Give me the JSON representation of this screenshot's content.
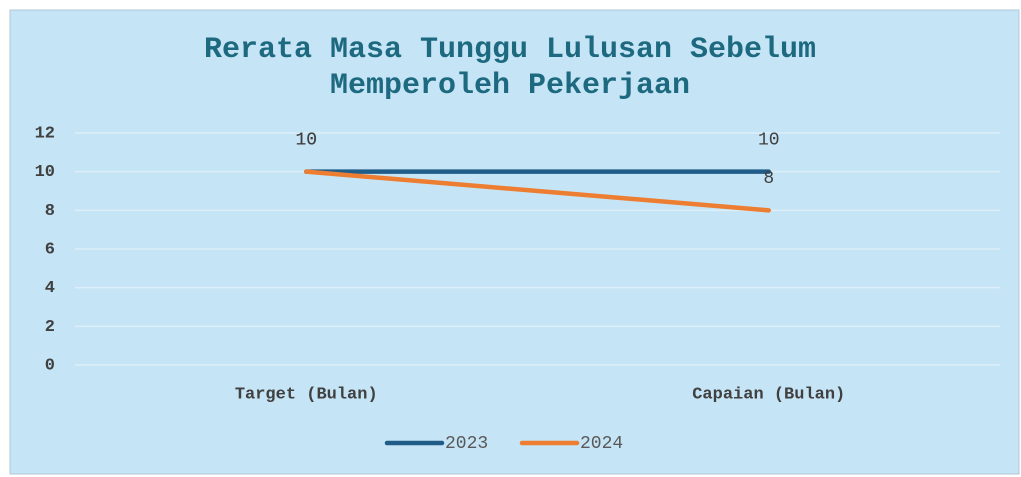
{
  "chart_data": {
    "type": "line",
    "title": "Rerata Masa Tunggu Lulusan Sebelum Memperoleh Pekerjaan",
    "categories": [
      "Target (Bulan)",
      "Capaian (Bulan)"
    ],
    "series": [
      {
        "name": "2023",
        "color": "#1f5c87",
        "values": [
          10,
          10
        ]
      },
      {
        "name": "2024",
        "color": "#ed7d31",
        "values": [
          10,
          8
        ]
      }
    ],
    "ylim": [
      0,
      12
    ],
    "yticks": [
      0,
      2,
      4,
      6,
      8,
      10,
      12
    ],
    "grid": true,
    "legend": "bottom"
  }
}
